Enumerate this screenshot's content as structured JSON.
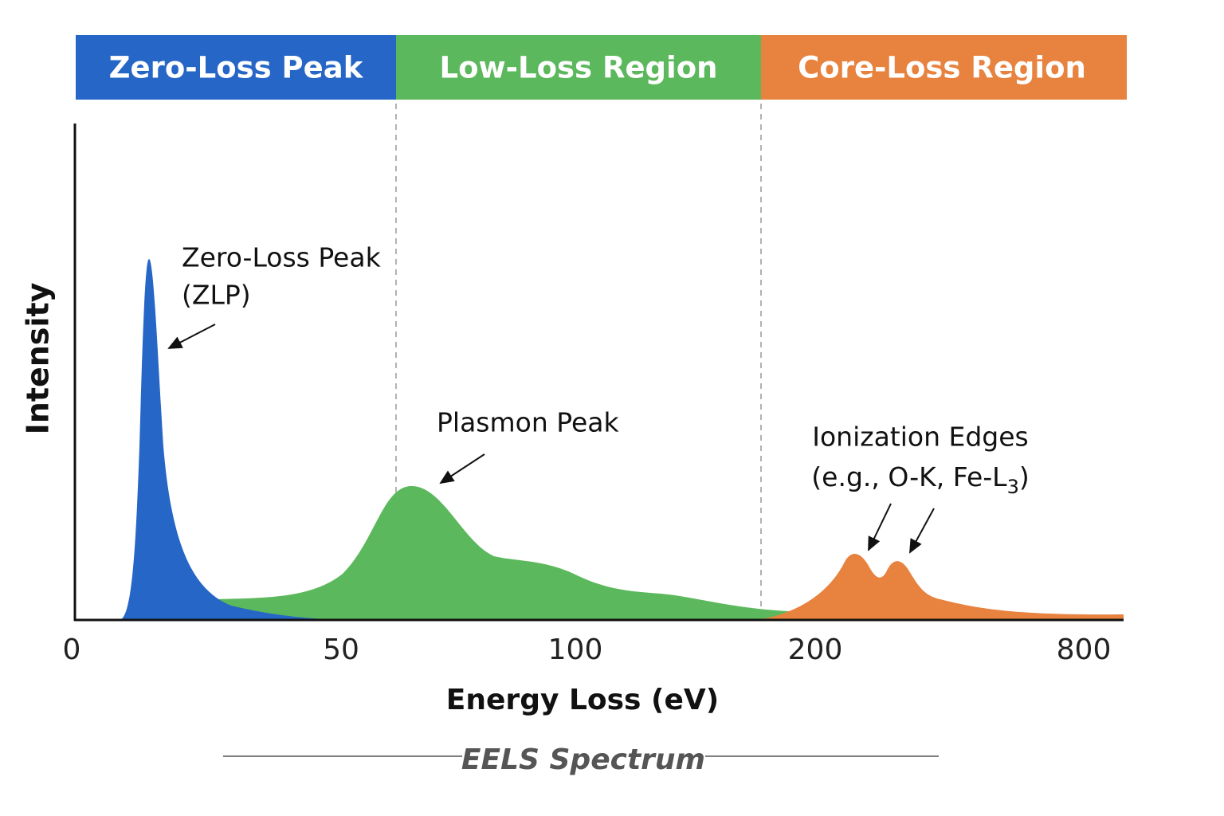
{
  "header": {
    "regions": [
      "Zero-Loss Peak",
      "Low-Loss Region",
      "Core-Loss Region"
    ]
  },
  "chart": {
    "y_label": "Intensity",
    "x_label": "Energy Loss (eV)",
    "x_ticks": [
      0,
      50,
      100,
      200,
      800
    ],
    "annotations": {
      "zlp": [
        "Zero-Loss Peak",
        "(ZLP)"
      ],
      "plasmon": "Plasmon Peak",
      "edges": {
        "line1": "Ionization Edges",
        "line2": "(e.g., O-K, Fe-L",
        "subscript": "3",
        "close": ")"
      }
    }
  },
  "footer": {
    "title": "EELS Spectrum"
  }
}
